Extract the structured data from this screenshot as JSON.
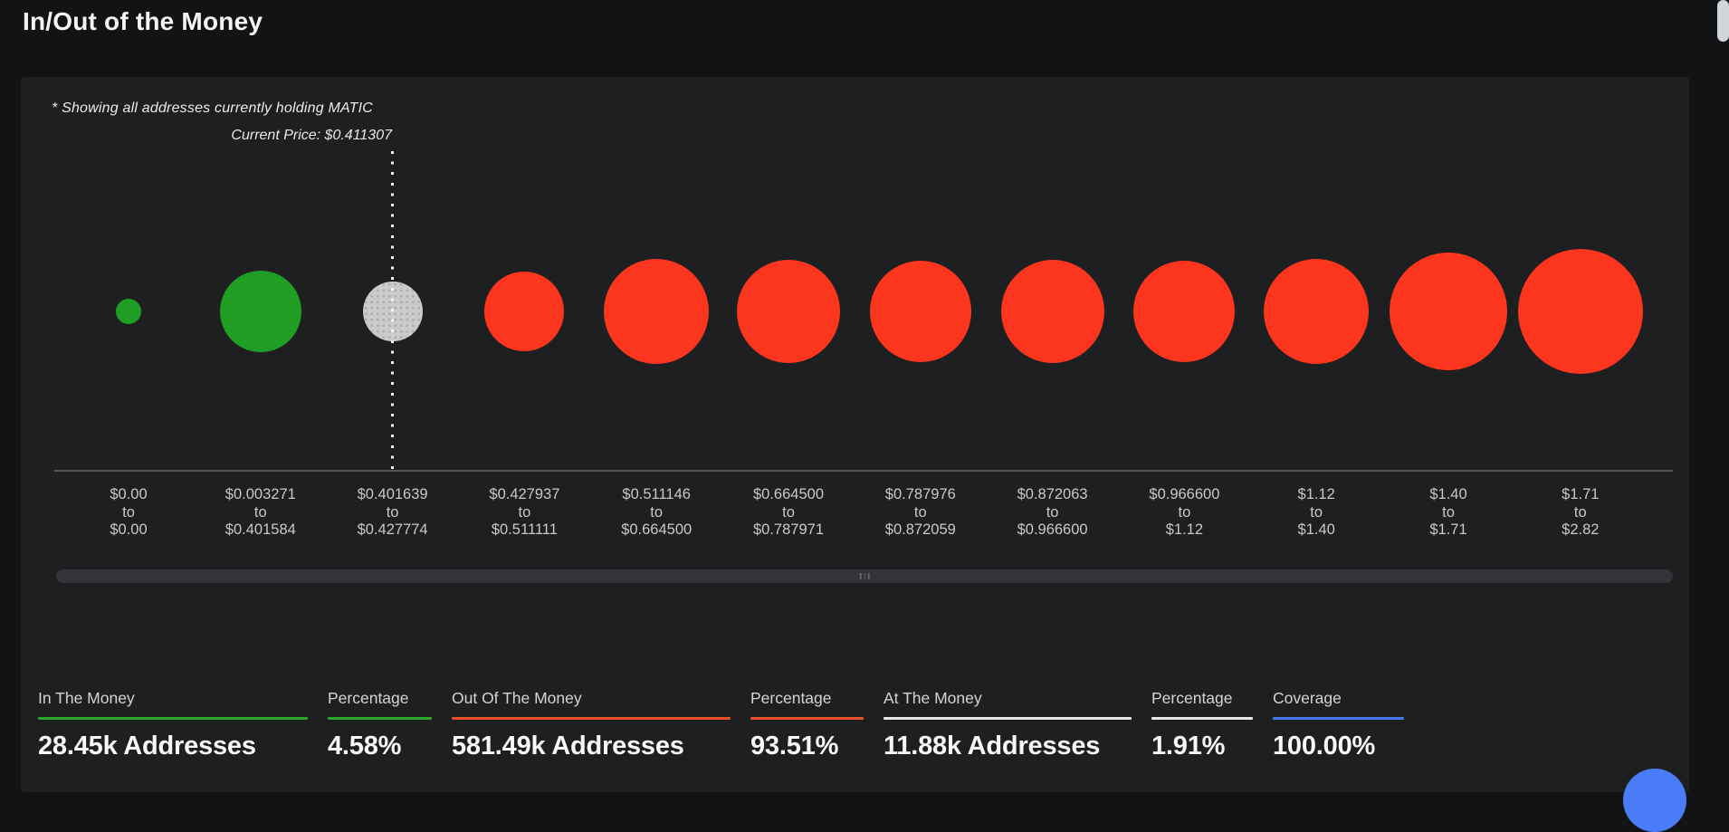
{
  "page": {
    "title": "In/Out of the Money"
  },
  "chart_data": {
    "type": "bubble",
    "title": "In/Out of the Money",
    "note": "* Showing all addresses currently holding MATIC",
    "current_price_text": "Current Price: $0.411307",
    "current_price": 0.411307,
    "separator": "to",
    "legend_position": "none",
    "x_axis": "MATIC price range buckets",
    "bubbles": [
      {
        "from": "$0.00",
        "to": "$0.00",
        "status": "in_the_money",
        "radius": 14
      },
      {
        "from": "$0.003271",
        "to": "$0.401584",
        "status": "in_the_money",
        "radius": 45
      },
      {
        "from": "$0.401639",
        "to": "$0.427774",
        "status": "at_the_money",
        "radius": 33
      },
      {
        "from": "$0.427937",
        "to": "$0.511111",
        "status": "out_of_the_money",
        "radius": 44
      },
      {
        "from": "$0.511146",
        "to": "$0.664500",
        "status": "out_of_the_money",
        "radius": 58
      },
      {
        "from": "$0.664500",
        "to": "$0.787971",
        "status": "out_of_the_money",
        "radius": 57
      },
      {
        "from": "$0.787976",
        "to": "$0.872059",
        "status": "out_of_the_money",
        "radius": 56
      },
      {
        "from": "$0.872063",
        "to": "$0.966600",
        "status": "out_of_the_money",
        "radius": 57
      },
      {
        "from": "$0.966600",
        "to": "$1.12",
        "status": "out_of_the_money",
        "radius": 56
      },
      {
        "from": "$1.12",
        "to": "$1.40",
        "status": "out_of_the_money",
        "radius": 58
      },
      {
        "from": "$1.40",
        "to": "$1.71",
        "status": "out_of_the_money",
        "radius": 65
      },
      {
        "from": "$1.71",
        "to": "$2.82",
        "status": "out_of_the_money",
        "radius": 69
      }
    ],
    "colors": {
      "in_the_money": "#1f9e23",
      "out_of_the_money": "#fc351f",
      "at_the_money": "#c8cacb",
      "current_price_line": "#f4f4f4"
    }
  },
  "stats": [
    {
      "label": "In The Money",
      "value": "28.45k Addresses",
      "accent": "#2ba82a"
    },
    {
      "label": "Percentage",
      "value": "4.58%",
      "accent": "#2ba82a"
    },
    {
      "label": "Out Of The Money",
      "value": "581.49k Addresses",
      "accent": "#e8502b"
    },
    {
      "label": "Percentage",
      "value": "93.51%",
      "accent": "#e8502b"
    },
    {
      "label": "At The Money",
      "value": "11.88k Addresses",
      "accent": "#e9e9e9"
    },
    {
      "label": "Percentage",
      "value": "1.91%",
      "accent": "#e9e9e9"
    },
    {
      "label": "Coverage",
      "value": "100.00%",
      "accent": "#4678f0"
    }
  ]
}
